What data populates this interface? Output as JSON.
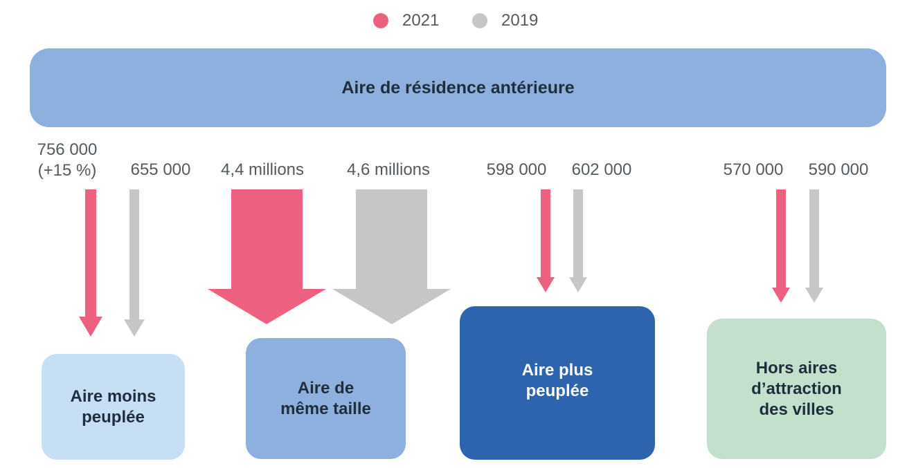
{
  "legend": {
    "items": [
      {
        "label": "2021",
        "color": "#ec6180"
      },
      {
        "label": "2019",
        "color": "#c6c6c6"
      }
    ]
  },
  "source_box": {
    "label": "Aire de résidence antérieure",
    "color": "#8eb0de"
  },
  "destinations": [
    {
      "label": "Aire moins\npeuplée",
      "color": "#c6dff5",
      "text_color": "#1f2d3d",
      "value_2021": "756 000\n(+15 %)",
      "value_2019": "655 000"
    },
    {
      "label": "Aire de\nmême taille",
      "color": "#8eb0de",
      "text_color": "#1f2d3d",
      "value_2021": "4,4 millions",
      "value_2019": "4,6 millions"
    },
    {
      "label": "Aire plus\npeuplée",
      "color": "#2e64ad",
      "text_color": "#ffffff",
      "value_2021": "598 000",
      "value_2019": "602 000"
    },
    {
      "label": "Hors aires\nd’attraction\ndes villes",
      "color": "#c2e0cb",
      "text_color": "#1f2d3d",
      "value_2021": "570 000",
      "value_2019": "590 000"
    }
  ],
  "chart_data": {
    "type": "flow",
    "source": "Aire de résidence antérieure",
    "series": [
      {
        "name": "2021",
        "color": "#ec6180",
        "values": [
          756000,
          4400000,
          598000,
          570000
        ]
      },
      {
        "name": "2019",
        "color": "#c6c6c6",
        "values": [
          655000,
          4600000,
          602000,
          590000
        ]
      }
    ],
    "categories": [
      "Aire moins peuplée",
      "Aire de même taille",
      "Aire plus peuplée",
      "Hors aires d’attraction des villes"
    ],
    "annotations": [
      "(+15 %)"
    ]
  }
}
